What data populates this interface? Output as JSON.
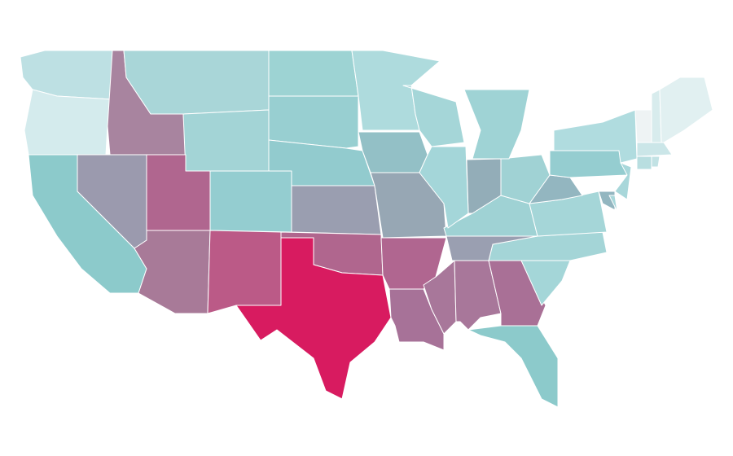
{
  "map": {
    "regions": [
      {
        "color": "#bde0e3"
      },
      {
        "color": "#d4ebed"
      },
      {
        "color": "#8ccacb"
      },
      {
        "color": "#9b9aae"
      },
      {
        "color": "#a8849f"
      },
      {
        "color": "#a9d6d8"
      },
      {
        "color": "#a3d4d6"
      },
      {
        "color": "#b0668f"
      },
      {
        "color": "#a87a98"
      },
      {
        "color": "#94cdd0"
      },
      {
        "color": "#bb5a87"
      },
      {
        "color": "#9dd3d3"
      },
      {
        "color": "#98cfd1"
      },
      {
        "color": "#92cbce"
      },
      {
        "color": "#9a9eb0"
      },
      {
        "color": "#b0668e"
      },
      {
        "color": "#d81b60"
      },
      {
        "color": "#aedbdd"
      },
      {
        "color": "#93c0c6"
      },
      {
        "color": "#97a7b4"
      },
      {
        "color": "#b06690"
      },
      {
        "color": "#a77298"
      },
      {
        "color": "#a8779a"
      },
      {
        "color": "#a8779a"
      },
      {
        "color": "#a97096"
      },
      {
        "color": "#8ccacb"
      },
      {
        "color": "#a4d6d8"
      },
      {
        "color": "#a4d5d7"
      },
      {
        "color": "#9a9fb1"
      },
      {
        "color": "#9fd2d4"
      },
      {
        "color": "#a5d6d8"
      },
      {
        "color": "#93b6c0"
      },
      {
        "color": "#a0d2d4"
      },
      {
        "color": "#93adb8"
      },
      {
        "color": "#a4d6d9"
      },
      {
        "color": "#a5d6d8"
      },
      {
        "color": "#9fd3d5"
      },
      {
        "color": "#95cdd0"
      },
      {
        "color": "#b0dcdf"
      },
      {
        "color": "#a8d7da"
      },
      {
        "color": "#93b6c0"
      },
      {
        "color": "#a8d7da"
      },
      {
        "color": "#eef3f4"
      },
      {
        "color": "#d8eced"
      },
      {
        "color": "#e1f0f1"
      },
      {
        "color": "#cbe6e8"
      },
      {
        "color": "#b8dee0"
      },
      {
        "color": "#c2e2e4"
      }
    ]
  }
}
